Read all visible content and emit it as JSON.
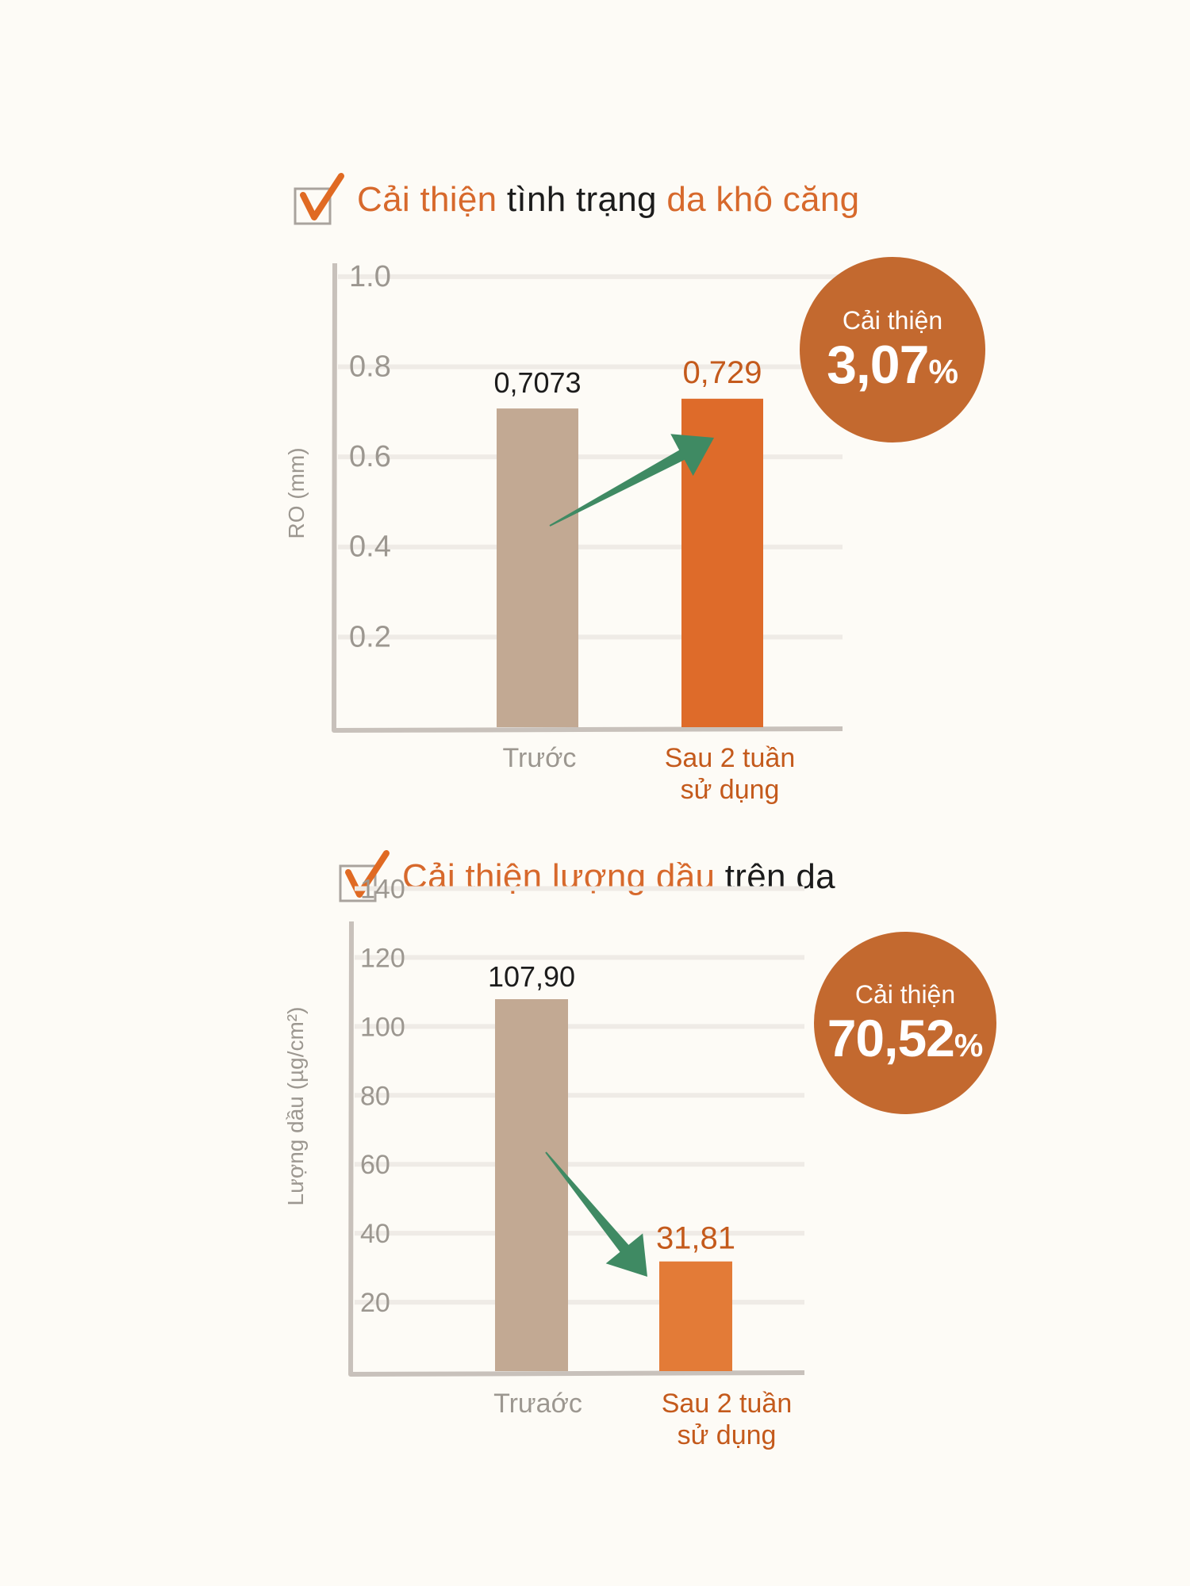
{
  "colors": {
    "before_bar": "#c2a993",
    "after_bar": "#de6b2a",
    "after_bar_2": "#e37b37",
    "highlight_text": "#d7692c",
    "badge": "#c3692f",
    "arrow": "#3f8a63",
    "axis": "#c8c1bb",
    "grid": "#efebe6",
    "tick_text": "#9c9790"
  },
  "chart_data": [
    {
      "type": "bar",
      "heading": {
        "highlight1": "Cải thiện",
        "plain1": "tình trạng",
        "highlight2": "da khô căng"
      },
      "ylabel": "RO (mm)",
      "ylim": [
        0,
        1.1
      ],
      "yticks": [
        "0.2",
        "0.4",
        "0.6",
        "0.8",
        "1.0"
      ],
      "categories": [
        "Trước",
        "Sau 2 tuần sử dụng"
      ],
      "category_lines": [
        [
          "Trước"
        ],
        [
          "Sau 2 tuần",
          "sử dụng"
        ]
      ],
      "values": [
        0.7073,
        0.729
      ],
      "value_labels": [
        "0,7073",
        "0,729"
      ],
      "badge": {
        "label": "Cải thiện",
        "value": "3,07",
        "unit": "%"
      },
      "arrow_direction": "up",
      "grid": true
    },
    {
      "type": "bar",
      "heading": {
        "highlight1": "Cải thiện lượng dầu",
        "plain1": "trên da",
        "highlight2": ""
      },
      "ylabel": "Lượng dầu (µg/cm²)",
      "ylim": [
        0,
        150
      ],
      "yticks": [
        "20",
        "40",
        "60",
        "80",
        "100",
        "120",
        "140"
      ],
      "categories": [
        "Trưaớc",
        "Sau 2 tuần sử dụng"
      ],
      "category_lines": [
        [
          "Trưaớc"
        ],
        [
          "Sau 2 tuần",
          "sử dụng"
        ]
      ],
      "values": [
        107.9,
        31.81
      ],
      "value_labels": [
        "107,90",
        "31,81"
      ],
      "badge": {
        "label": "Cải thiện",
        "value": "70,52",
        "unit": "%"
      },
      "arrow_direction": "down",
      "grid": true
    }
  ]
}
